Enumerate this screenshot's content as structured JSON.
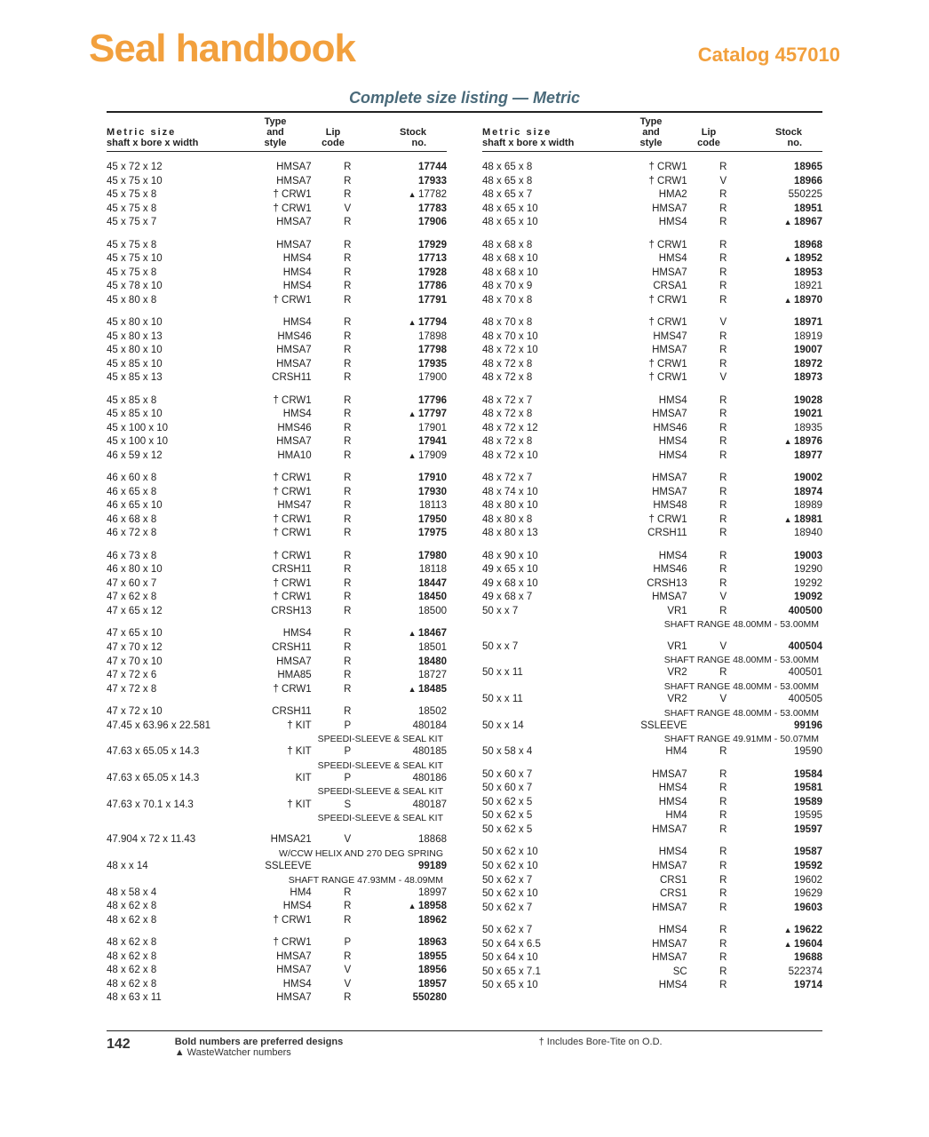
{
  "header": {
    "title": "Seal handbook",
    "catalog": "Catalog 457010"
  },
  "subtitle": "Complete size listing — Metric",
  "table_header": {
    "r1": {
      "size": "Metric size",
      "type": "Type",
      "lip": "Lip",
      "stock": "Stock"
    },
    "r2": {
      "size": "shaft x bore x width",
      "type": "and style",
      "lip": "code",
      "stock": "no."
    }
  },
  "footer": {
    "page": "142",
    "line1": "Bold numbers are preferred designs",
    "line2": "▲ WasteWatcher numbers",
    "right": "† Includes Bore-Tite on O.D."
  },
  "left": [
    [
      {
        "s": "45 x 72 x 12",
        "t": "HMSA7",
        "l": "R",
        "n": "17744",
        "b": 1
      },
      {
        "s": "45 x 75 x 10",
        "t": "HMSA7",
        "l": "R",
        "n": "17933",
        "b": 1
      },
      {
        "s": "45 x 75 x 8",
        "t": "† CRW1",
        "l": "R",
        "n": "17782",
        "b": 0,
        "w": 1
      },
      {
        "s": "45 x 75 x 8",
        "t": "† CRW1",
        "l": "V",
        "n": "17783",
        "b": 1
      },
      {
        "s": "45 x 75 x 7",
        "t": "HMSA7",
        "l": "R",
        "n": "17906",
        "b": 1
      }
    ],
    [
      {
        "s": "45 x 75 x 8",
        "t": "HMSA7",
        "l": "R",
        "n": "17929",
        "b": 1
      },
      {
        "s": "45 x 75 x 10",
        "t": "HMS4",
        "l": "R",
        "n": "17713",
        "b": 1
      },
      {
        "s": "45 x 75 x 8",
        "t": "HMS4",
        "l": "R",
        "n": "17928",
        "b": 1
      },
      {
        "s": "45 x 78 x 10",
        "t": "HMS4",
        "l": "R",
        "n": "17786",
        "b": 1
      },
      {
        "s": "45 x 80 x 8",
        "t": "† CRW1",
        "l": "R",
        "n": "17791",
        "b": 1
      }
    ],
    [
      {
        "s": "45 x 80 x 10",
        "t": "HMS4",
        "l": "R",
        "n": "17794",
        "b": 1,
        "w": 1
      },
      {
        "s": "45 x 80 x 13",
        "t": "HMS46",
        "l": "R",
        "n": "17898",
        "b": 0
      },
      {
        "s": "45 x 80 x 10",
        "t": "HMSA7",
        "l": "R",
        "n": "17798",
        "b": 1
      },
      {
        "s": "45 x 85 x 10",
        "t": "HMSA7",
        "l": "R",
        "n": "17935",
        "b": 1
      },
      {
        "s": "45 x 85 x 13",
        "t": "CRSH11",
        "l": "R",
        "n": "17900",
        "b": 0
      }
    ],
    [
      {
        "s": "45 x 85 x 8",
        "t": "† CRW1",
        "l": "R",
        "n": "17796",
        "b": 1
      },
      {
        "s": "45 x 85 x 10",
        "t": "HMS4",
        "l": "R",
        "n": "17797",
        "b": 1,
        "w": 1
      },
      {
        "s": "45 x 100 x 10",
        "t": "HMS46",
        "l": "R",
        "n": "17901",
        "b": 0
      },
      {
        "s": "45 x 100 x 10",
        "t": "HMSA7",
        "l": "R",
        "n": "17941",
        "b": 1
      },
      {
        "s": "46 x 59 x 12",
        "t": "HMA10",
        "l": "R",
        "n": "17909",
        "b": 0,
        "w": 1
      }
    ],
    [
      {
        "s": "46 x 60 x 8",
        "t": "† CRW1",
        "l": "R",
        "n": "17910",
        "b": 1
      },
      {
        "s": "46 x 65 x 8",
        "t": "† CRW1",
        "l": "R",
        "n": "17930",
        "b": 1
      },
      {
        "s": "46 x 65 x 10",
        "t": "HMS47",
        "l": "R",
        "n": "18113",
        "b": 0
      },
      {
        "s": "46 x 68 x 8",
        "t": "† CRW1",
        "l": "R",
        "n": "17950",
        "b": 1
      },
      {
        "s": "46 x 72 x 8",
        "t": "† CRW1",
        "l": "R",
        "n": "17975",
        "b": 1
      }
    ],
    [
      {
        "s": "46 x 73 x 8",
        "t": "† CRW1",
        "l": "R",
        "n": "17980",
        "b": 1
      },
      {
        "s": "46 x 80 x 10",
        "t": "CRSH11",
        "l": "R",
        "n": "18118",
        "b": 0
      },
      {
        "s": "47 x 60 x 7",
        "t": "† CRW1",
        "l": "R",
        "n": "18447",
        "b": 1
      },
      {
        "s": "47 x 62 x 8",
        "t": "† CRW1",
        "l": "R",
        "n": "18450",
        "b": 1
      },
      {
        "s": "47 x 65 x 12",
        "t": "CRSH13",
        "l": "R",
        "n": "18500",
        "b": 0
      }
    ],
    [
      {
        "s": "47 x 65 x 10",
        "t": "HMS4",
        "l": "R",
        "n": "18467",
        "b": 1,
        "w": 1
      },
      {
        "s": "47 x 70 x 12",
        "t": "CRSH11",
        "l": "R",
        "n": "18501",
        "b": 0
      },
      {
        "s": "47 x 70 x 10",
        "t": "HMSA7",
        "l": "R",
        "n": "18480",
        "b": 1
      },
      {
        "s": "47 x 72 x 6",
        "t": "HMA85",
        "l": "R",
        "n": "18727",
        "b": 0
      },
      {
        "s": "47 x 72 x 8",
        "t": "† CRW1",
        "l": "R",
        "n": "18485",
        "b": 1,
        "w": 1
      }
    ],
    [
      {
        "s": "47 x 72 x 10",
        "t": "CRSH11",
        "l": "R",
        "n": "18502",
        "b": 0
      },
      {
        "s": "47.45 x 63.96 x 22.581",
        "t": "† KIT",
        "l": "P",
        "n": "480184",
        "b": 0,
        "note": "SPEEDI-SLEEVE & SEAL KIT"
      },
      {
        "s": "47.63 x 65.05 x 14.3",
        "t": "† KIT",
        "l": "P",
        "n": "480185",
        "b": 0,
        "note": "SPEEDI-SLEEVE & SEAL KIT"
      },
      {
        "s": "47.63 x 65.05 x 14.3",
        "t": "KIT",
        "l": "P",
        "n": "480186",
        "b": 0,
        "note": "SPEEDI-SLEEVE & SEAL KIT"
      },
      {
        "s": "47.63 x 70.1 x 14.3",
        "t": "† KIT",
        "l": "S",
        "n": "480187",
        "b": 0,
        "note": "SPEEDI-SLEEVE & SEAL KIT"
      }
    ],
    [
      {
        "s": "47.904 x 72 x 11.43",
        "t": "HMSA21",
        "l": "V",
        "n": "18868",
        "b": 0,
        "note": "W/CCW HELIX AND 270 DEG SPRING"
      },
      {
        "s": "48 x      x 14",
        "t": "SSLEEVE",
        "l": "",
        "n": "99189",
        "b": 1,
        "note": "SHAFT RANGE 47.93MM - 48.09MM"
      },
      {
        "s": "48 x 58 x 4",
        "t": "HM4",
        "l": "R",
        "n": "18997",
        "b": 0
      },
      {
        "s": "48 x 62 x 8",
        "t": "HMS4",
        "l": "R",
        "n": "18958",
        "b": 1,
        "w": 1
      },
      {
        "s": "48 x 62 x 8",
        "t": "† CRW1",
        "l": "R",
        "n": "18962",
        "b": 1
      }
    ],
    [
      {
        "s": "48 x 62 x 8",
        "t": "† CRW1",
        "l": "P",
        "n": "18963",
        "b": 1
      },
      {
        "s": "48 x 62 x 8",
        "t": "HMSA7",
        "l": "R",
        "n": "18955",
        "b": 1
      },
      {
        "s": "48 x 62 x 8",
        "t": "HMSA7",
        "l": "V",
        "n": "18956",
        "b": 1
      },
      {
        "s": "48 x 62 x 8",
        "t": "HMS4",
        "l": "V",
        "n": "18957",
        "b": 1
      },
      {
        "s": "48 x 63 x 11",
        "t": "HMSA7",
        "l": "R",
        "n": "550280",
        "b": 1
      }
    ]
  ],
  "right": [
    [
      {
        "s": "48 x 65 x 8",
        "t": "† CRW1",
        "l": "R",
        "n": "18965",
        "b": 1
      },
      {
        "s": "48 x 65 x 8",
        "t": "† CRW1",
        "l": "V",
        "n": "18966",
        "b": 1
      },
      {
        "s": "48 x 65 x 7",
        "t": "HMA2",
        "l": "R",
        "n": "550225",
        "b": 0
      },
      {
        "s": "48 x 65 x 10",
        "t": "HMSA7",
        "l": "R",
        "n": "18951",
        "b": 1
      },
      {
        "s": "48 x 65 x 10",
        "t": "HMS4",
        "l": "R",
        "n": "18967",
        "b": 1,
        "w": 1
      }
    ],
    [
      {
        "s": "48 x 68 x 8",
        "t": "† CRW1",
        "l": "R",
        "n": "18968",
        "b": 1
      },
      {
        "s": "48 x 68 x 10",
        "t": "HMS4",
        "l": "R",
        "n": "18952",
        "b": 1,
        "w": 1
      },
      {
        "s": "48 x 68 x 10",
        "t": "HMSA7",
        "l": "R",
        "n": "18953",
        "b": 1
      },
      {
        "s": "48 x 70 x 9",
        "t": "CRSA1",
        "l": "R",
        "n": "18921",
        "b": 0
      },
      {
        "s": "48 x 70 x 8",
        "t": "† CRW1",
        "l": "R",
        "n": "18970",
        "b": 1,
        "w": 1
      }
    ],
    [
      {
        "s": "48 x 70 x 8",
        "t": "† CRW1",
        "l": "V",
        "n": "18971",
        "b": 1
      },
      {
        "s": "48 x 70 x 10",
        "t": "HMS47",
        "l": "R",
        "n": "18919",
        "b": 0
      },
      {
        "s": "48 x 72 x 10",
        "t": "HMSA7",
        "l": "R",
        "n": "19007",
        "b": 1
      },
      {
        "s": "48 x 72 x 8",
        "t": "† CRW1",
        "l": "R",
        "n": "18972",
        "b": 1
      },
      {
        "s": "48 x 72 x 8",
        "t": "† CRW1",
        "l": "V",
        "n": "18973",
        "b": 1
      }
    ],
    [
      {
        "s": "48 x 72 x 7",
        "t": "HMS4",
        "l": "R",
        "n": "19028",
        "b": 1
      },
      {
        "s": "48 x 72 x 8",
        "t": "HMSA7",
        "l": "R",
        "n": "19021",
        "b": 1
      },
      {
        "s": "48 x 72 x 12",
        "t": "HMS46",
        "l": "R",
        "n": "18935",
        "b": 0
      },
      {
        "s": "48 x 72 x 8",
        "t": "HMS4",
        "l": "R",
        "n": "18976",
        "b": 1,
        "w": 1
      },
      {
        "s": "48 x 72 x 10",
        "t": "HMS4",
        "l": "R",
        "n": "18977",
        "b": 1
      }
    ],
    [
      {
        "s": "48 x 72 x 7",
        "t": "HMSA7",
        "l": "R",
        "n": "19002",
        "b": 1
      },
      {
        "s": "48 x 74 x 10",
        "t": "HMSA7",
        "l": "R",
        "n": "18974",
        "b": 1
      },
      {
        "s": "48 x 80 x 10",
        "t": "HMS48",
        "l": "R",
        "n": "18989",
        "b": 0
      },
      {
        "s": "48 x 80 x 8",
        "t": "† CRW1",
        "l": "R",
        "n": "18981",
        "b": 1,
        "w": 1
      },
      {
        "s": "48 x 80 x 13",
        "t": "CRSH11",
        "l": "R",
        "n": "18940",
        "b": 0
      }
    ],
    [
      {
        "s": "48 x 90 x 10",
        "t": "HMS4",
        "l": "R",
        "n": "19003",
        "b": 1
      },
      {
        "s": "49 x 65 x 10",
        "t": "HMS46",
        "l": "R",
        "n": "19290",
        "b": 0
      },
      {
        "s": "49 x 68 x 10",
        "t": "CRSH13",
        "l": "R",
        "n": "19292",
        "b": 0
      },
      {
        "s": "49 x 68 x 7",
        "t": "HMSA7",
        "l": "V",
        "n": "19092",
        "b": 1
      },
      {
        "s": "50 x      x 7",
        "t": "VR1",
        "l": "R",
        "n": "400500",
        "b": 1,
        "note": "SHAFT RANGE 48.00MM - 53.00MM"
      }
    ],
    [
      {
        "s": "50 x      x 7",
        "t": "VR1",
        "l": "V",
        "n": "400504",
        "b": 1,
        "note": "SHAFT RANGE 48.00MM - 53.00MM"
      },
      {
        "s": "50 x      x 11",
        "t": "VR2",
        "l": "R",
        "n": "400501",
        "b": 0,
        "note": "SHAFT RANGE 48.00MM - 53.00MM"
      },
      {
        "s": "50 x      x 11",
        "t": "VR2",
        "l": "V",
        "n": "400505",
        "b": 0,
        "note": "SHAFT RANGE 48.00MM - 53.00MM"
      },
      {
        "s": "50 x      x 14",
        "t": "SSLEEVE",
        "l": "",
        "n": "99196",
        "b": 1,
        "note": "SHAFT RANGE 49.91MM - 50.07MM"
      },
      {
        "s": "50 x 58 x 4",
        "t": "HM4",
        "l": "R",
        "n": "19590",
        "b": 0
      }
    ],
    [
      {
        "s": "50 x 60 x 7",
        "t": "HMSA7",
        "l": "R",
        "n": "19584",
        "b": 1
      },
      {
        "s": "50 x 60 x 7",
        "t": "HMS4",
        "l": "R",
        "n": "19581",
        "b": 1
      },
      {
        "s": "50 x 62 x 5",
        "t": "HMS4",
        "l": "R",
        "n": "19589",
        "b": 1
      },
      {
        "s": "50 x 62 x 5",
        "t": "HM4",
        "l": "R",
        "n": "19595",
        "b": 0
      },
      {
        "s": "50 x 62 x 5",
        "t": "HMSA7",
        "l": "R",
        "n": "19597",
        "b": 1
      }
    ],
    [
      {
        "s": "50 x 62 x 10",
        "t": "HMS4",
        "l": "R",
        "n": "19587",
        "b": 1
      },
      {
        "s": "50 x 62 x 10",
        "t": "HMSA7",
        "l": "R",
        "n": "19592",
        "b": 1
      },
      {
        "s": "50 x 62 x 7",
        "t": "CRS1",
        "l": "R",
        "n": "19602",
        "b": 0
      },
      {
        "s": "50 x 62 x 10",
        "t": "CRS1",
        "l": "R",
        "n": "19629",
        "b": 0
      },
      {
        "s": "50 x 62 x 7",
        "t": "HMSA7",
        "l": "R",
        "n": "19603",
        "b": 1
      }
    ],
    [
      {
        "s": "50 x 62 x 7",
        "t": "HMS4",
        "l": "R",
        "n": "19622",
        "b": 1,
        "w": 1
      },
      {
        "s": "50 x 64 x 6.5",
        "t": "HMSA7",
        "l": "R",
        "n": "19604",
        "b": 1,
        "w": 1
      },
      {
        "s": "50 x 64 x 10",
        "t": "HMSA7",
        "l": "R",
        "n": "19688",
        "b": 1
      },
      {
        "s": "50 x 65 x 7.1",
        "t": "SC",
        "l": "R",
        "n": "522374",
        "b": 0
      },
      {
        "s": "50 x 65 x 10",
        "t": "HMS4",
        "l": "R",
        "n": "19714",
        "b": 1
      }
    ]
  ]
}
